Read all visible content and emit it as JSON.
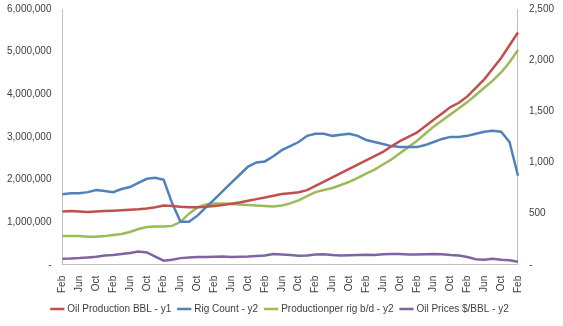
{
  "chart_data": {
    "type": "line",
    "categories": [
      "Feb",
      null,
      "Jun",
      null,
      "Oct",
      null,
      "Feb",
      null,
      "Jun",
      null,
      "Oct",
      null,
      "Feb",
      null,
      "Jun",
      null,
      "Oct",
      null,
      "Feb",
      null,
      "Jun",
      null,
      "Oct",
      null,
      "Feb",
      null,
      "Jun",
      null,
      "Oct",
      null,
      "Feb",
      null,
      "Jun",
      null,
      "Oct",
      null,
      "Feb",
      null,
      "Jun",
      null,
      "Oct",
      null,
      "Feb",
      null,
      "Jun",
      null,
      "Oct",
      null,
      "Feb",
      null,
      "Jun",
      null,
      "Oct",
      null,
      "Feb"
    ],
    "series": [
      {
        "name": "Oil Production BBL - y1",
        "color": "#c0504d",
        "axis": "y1",
        "values": [
          1250000,
          1260000,
          1250000,
          1240000,
          1250000,
          1260000,
          1270000,
          1280000,
          1290000,
          1300000,
          1320000,
          1350000,
          1390000,
          1380000,
          1360000,
          1350000,
          1350000,
          1360000,
          1380000,
          1400000,
          1430000,
          1460000,
          1500000,
          1540000,
          1580000,
          1620000,
          1660000,
          1680000,
          1700000,
          1750000,
          1850000,
          1950000,
          2050000,
          2150000,
          2250000,
          2350000,
          2450000,
          2550000,
          2650000,
          2780000,
          2900000,
          3000000,
          3100000,
          3250000,
          3400000,
          3550000,
          3700000,
          3800000,
          3950000,
          4150000,
          4350000,
          4600000,
          4850000,
          5150000,
          5450000
        ]
      },
      {
        "name": "Rig Count - y2",
        "color": "#4f81bd",
        "axis": "y2",
        "values": [
          690,
          700,
          700,
          710,
          730,
          720,
          710,
          740,
          760,
          800,
          840,
          850,
          830,
          600,
          420,
          420,
          480,
          560,
          640,
          720,
          800,
          880,
          960,
          1000,
          1010,
          1060,
          1120,
          1160,
          1200,
          1260,
          1280,
          1280,
          1260,
          1270,
          1280,
          1260,
          1220,
          1200,
          1180,
          1160,
          1150,
          1150,
          1150,
          1170,
          1200,
          1230,
          1250,
          1250,
          1260,
          1280,
          1300,
          1310,
          1300,
          1200,
          870
        ]
      },
      {
        "name": "Productionper rig b/d - y2",
        "color": "#9bbb59",
        "axis": "y2",
        "values": [
          280,
          280,
          280,
          275,
          275,
          280,
          290,
          300,
          320,
          350,
          370,
          375,
          375,
          380,
          420,
          500,
          560,
          590,
          600,
          600,
          595,
          590,
          585,
          580,
          575,
          570,
          580,
          600,
          630,
          670,
          710,
          730,
          750,
          780,
          810,
          850,
          890,
          930,
          980,
          1030,
          1090,
          1150,
          1210,
          1280,
          1350,
          1410,
          1470,
          1530,
          1590,
          1660,
          1730,
          1800,
          1880,
          1980,
          2100
        ]
      },
      {
        "name": "Oil Prices $/BBL - y2",
        "color": "#8064a2",
        "axis": "y2",
        "values": [
          60,
          62,
          66,
          72,
          78,
          90,
          95,
          105,
          115,
          130,
          120,
          80,
          40,
          50,
          65,
          70,
          75,
          75,
          78,
          80,
          75,
          78,
          80,
          85,
          90,
          105,
          100,
          95,
          88,
          90,
          100,
          102,
          95,
          90,
          92,
          95,
          97,
          95,
          102,
          105,
          106,
          100,
          100,
          102,
          105,
          102,
          95,
          90,
          75,
          55,
          50,
          58,
          48,
          45,
          30
        ]
      }
    ],
    "ylim": [
      0,
      6000000
    ],
    "yticks": [
      {
        "value": 0,
        "label": "-"
      },
      {
        "value": 1000000,
        "label": "1,000,000"
      },
      {
        "value": 2000000,
        "label": "2,000,000"
      },
      {
        "value": 3000000,
        "label": "3,000,000"
      },
      {
        "value": 4000000,
        "label": "4,000,000"
      },
      {
        "value": 5000000,
        "label": "5,000,000"
      },
      {
        "value": 6000000,
        "label": "6,000,000"
      }
    ],
    "y2lim": [
      0,
      2500
    ],
    "y2ticks": [
      {
        "value": 0,
        "label": "-"
      },
      500,
      {
        "value": 1000,
        "label": "1,000"
      },
      {
        "value": 1500,
        "label": "1,500"
      },
      {
        "value": 2000,
        "label": "2,000"
      },
      {
        "value": 2500,
        "label": "2,500"
      }
    ],
    "grid": false,
    "legend": "bottom"
  }
}
